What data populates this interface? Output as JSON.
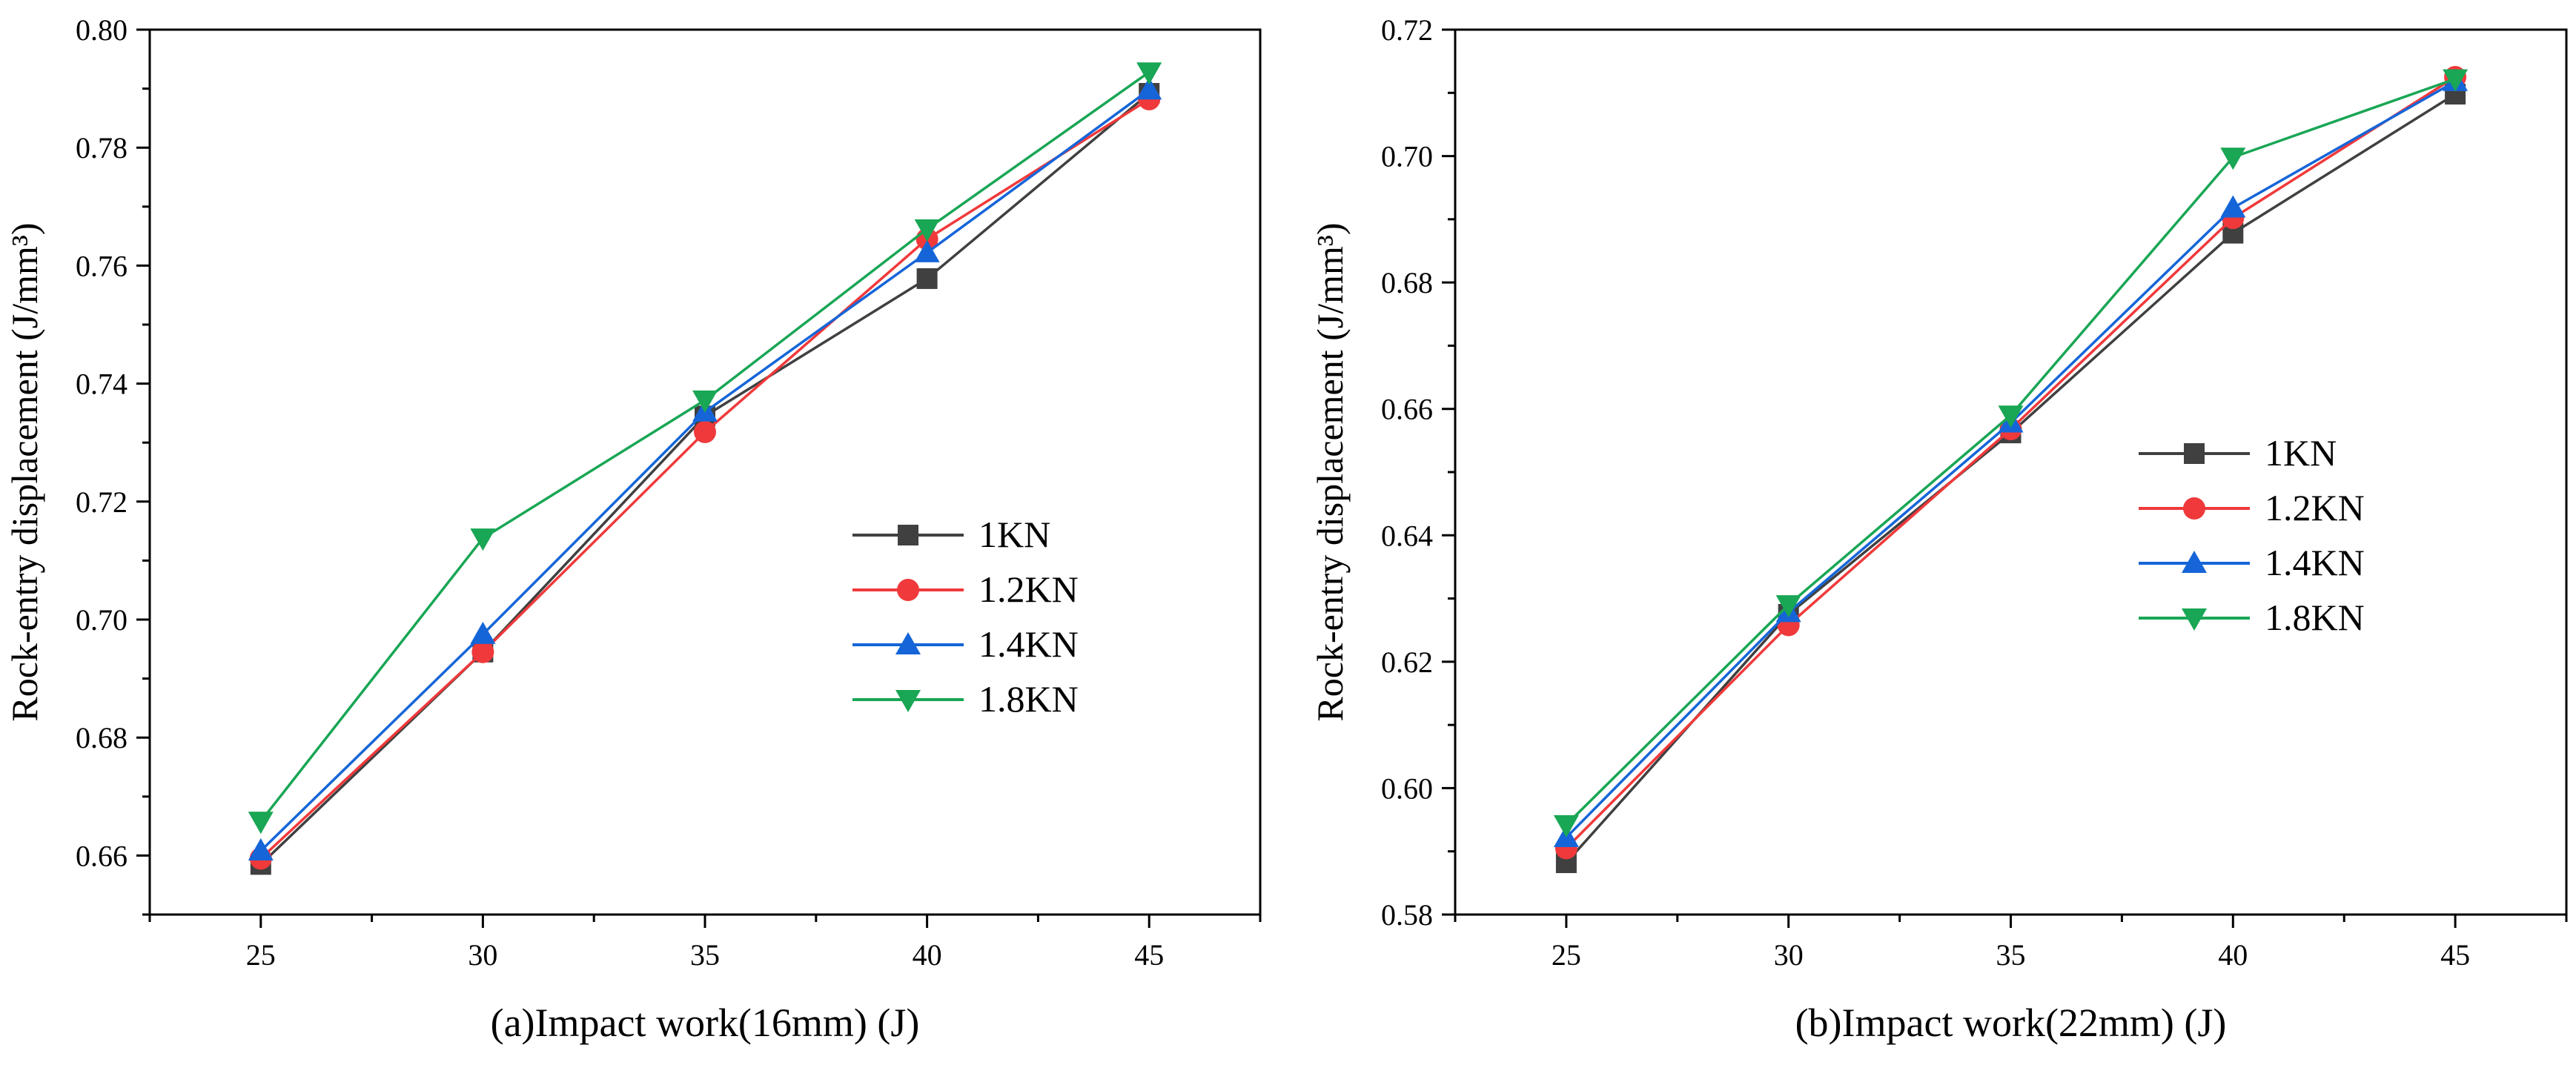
{
  "chart_data": [
    {
      "type": "line",
      "title": "",
      "xlabel": "(a)Impact work(16mm) (J)",
      "ylabel": "Rock-entry displacement (J/mm³)",
      "x": [
        25,
        30,
        35,
        40,
        45
      ],
      "xticks": [
        "25",
        "30",
        "35",
        "40",
        "45"
      ],
      "xlim": [
        22.5,
        47.5
      ],
      "ylim": [
        0.65,
        0.8
      ],
      "yticks": [
        "0.66",
        "0.68",
        "0.70",
        "0.72",
        "0.74",
        "0.76",
        "0.78",
        "0.80"
      ],
      "legend_position": "center-right",
      "series": [
        {
          "name": "1KN",
          "color": "#404040",
          "marker": "square",
          "values": [
            0.6585,
            0.6945,
            0.7345,
            0.7578,
            0.7892
          ]
        },
        {
          "name": "1.2KN",
          "color": "#f0393b",
          "marker": "circle",
          "values": [
            0.6595,
            0.6945,
            0.7318,
            0.7645,
            0.7882
          ]
        },
        {
          "name": "1.4KN",
          "color": "#1565d8",
          "marker": "triangle-up",
          "values": [
            0.6608,
            0.6975,
            0.7352,
            0.7622,
            0.7898
          ]
        },
        {
          "name": "1.8KN",
          "color": "#19a655",
          "marker": "triangle-down",
          "values": [
            0.6658,
            0.7138,
            0.7372,
            0.7662,
            0.7928
          ]
        }
      ]
    },
    {
      "type": "line",
      "title": "",
      "xlabel": "(b)Impact work(22mm) (J)",
      "ylabel": "Rock-entry displacement (J/mm³)",
      "x": [
        25,
        30,
        35,
        40,
        45
      ],
      "xticks": [
        "25",
        "30",
        "35",
        "40",
        "45"
      ],
      "xlim": [
        22.5,
        47.5
      ],
      "ylim": [
        0.58,
        0.72
      ],
      "yticks": [
        "0.58",
        "0.60",
        "0.62",
        "0.64",
        "0.66",
        "0.68",
        "0.70",
        "0.72"
      ],
      "legend_position": "center-right",
      "series": [
        {
          "name": "1KN",
          "color": "#404040",
          "marker": "square",
          "values": [
            0.5882,
            0.6275,
            0.6562,
            0.6878,
            0.7098
          ]
        },
        {
          "name": "1.2KN",
          "color": "#f0393b",
          "marker": "circle",
          "values": [
            0.5905,
            0.6258,
            0.6568,
            0.6902,
            0.7125
          ]
        },
        {
          "name": "1.4KN",
          "color": "#1565d8",
          "marker": "triangle-up",
          "values": [
            0.5922,
            0.6278,
            0.6578,
            0.6918,
            0.7118
          ]
        },
        {
          "name": "1.8KN",
          "color": "#19a655",
          "marker": "triangle-down",
          "values": [
            0.5942,
            0.629,
            0.659,
            0.6998,
            0.7122
          ]
        }
      ]
    }
  ]
}
